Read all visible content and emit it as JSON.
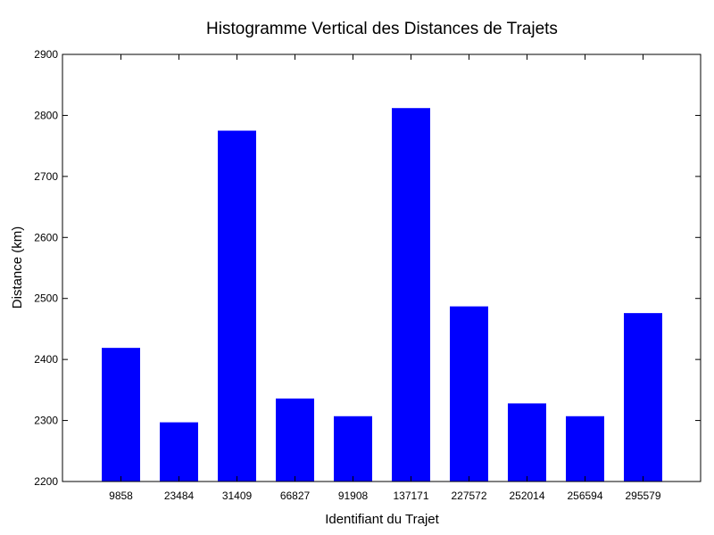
{
  "chart_data": {
    "type": "bar",
    "title": "Histogramme Vertical des Distances de Trajets",
    "xlabel": "Identifiant du Trajet",
    "ylabel": "Distance (km)",
    "categories": [
      "9858",
      "23484",
      "31409",
      "66827",
      "91908",
      "137171",
      "227572",
      "252014",
      "256594",
      "295579"
    ],
    "values": [
      2419,
      2297,
      2775,
      2336,
      2307,
      2812,
      2487,
      2328,
      2307,
      2476
    ],
    "ylim": [
      2200,
      2900
    ],
    "yticks": [
      "2200",
      "2300",
      "2400",
      "2500",
      "2600",
      "2700",
      "2800",
      "2900"
    ],
    "grid": false,
    "bar_color": "#0000ff"
  }
}
